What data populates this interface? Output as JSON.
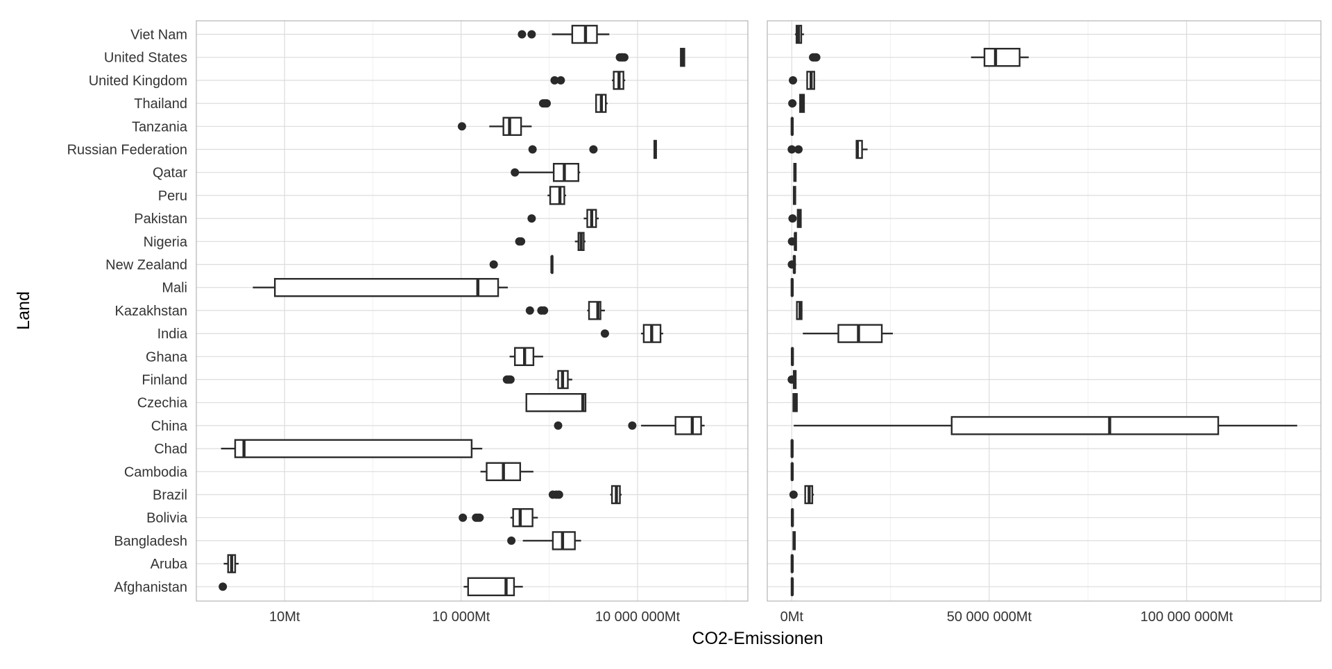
{
  "chart_data": {
    "type": "boxplot",
    "orientation": "horizontal",
    "ylabel": "Land",
    "xlabel": "CO2-Emissionen",
    "grid": true,
    "categories": [
      "Afghanistan",
      "Aruba",
      "Bangladesh",
      "Bolivia",
      "Brazil",
      "Cambodia",
      "Chad",
      "China",
      "Czechia",
      "Finland",
      "Ghana",
      "India",
      "Kazakhstan",
      "Mali",
      "New Zealand",
      "Nigeria",
      "Pakistan",
      "Peru",
      "Qatar",
      "Russian Federation",
      "Tanzania",
      "Thailand",
      "United Kingdom",
      "United States",
      "Viet Nam"
    ],
    "panels": [
      {
        "scale": "log10",
        "xlim": [
          3.0,
          9.25
        ],
        "x_ticks": [
          {
            "value": 4,
            "label": "10Mt"
          },
          {
            "value": 6,
            "label": "10 000Mt"
          },
          {
            "value": 8,
            "label": "10 000 000Mt"
          }
        ],
        "x_minor": [
          5,
          7,
          9
        ],
        "boxes": [
          {
            "category": "Afghanistan",
            "whisker_low": 6.03,
            "q1": 6.08,
            "median": 6.51,
            "q3": 6.6,
            "whisker_high": 6.7,
            "outliers": [
              3.3
            ]
          },
          {
            "category": "Aruba",
            "whisker_low": 3.31,
            "q1": 3.36,
            "median": 3.4,
            "q3": 3.44,
            "whisker_high": 3.48,
            "outliers": []
          },
          {
            "category": "Bangladesh",
            "whisker_low": 6.7,
            "q1": 7.04,
            "median": 7.15,
            "q3": 7.29,
            "whisker_high": 7.36,
            "outliers": [
              6.57
            ]
          },
          {
            "category": "Bolivia",
            "whisker_low": 6.56,
            "q1": 6.59,
            "median": 6.67,
            "q3": 6.81,
            "whisker_high": 6.87,
            "outliers": [
              6.02,
              6.17,
              6.19,
              6.21
            ]
          },
          {
            "category": "Brazil",
            "whisker_low": 7.69,
            "q1": 7.71,
            "median": 7.76,
            "q3": 7.8,
            "whisker_high": 7.82,
            "outliers": [
              7.04,
              7.08,
              7.11
            ]
          },
          {
            "category": "Cambodia",
            "whisker_low": 6.22,
            "q1": 6.29,
            "median": 6.48,
            "q3": 6.67,
            "whisker_high": 6.82,
            "outliers": []
          },
          {
            "category": "Chad",
            "whisker_low": 3.28,
            "q1": 3.44,
            "median": 3.54,
            "q3": 6.12,
            "whisker_high": 6.24,
            "outliers": []
          },
          {
            "category": "China",
            "whisker_low": 8.04,
            "q1": 8.43,
            "median": 8.62,
            "q3": 8.72,
            "whisker_high": 8.76,
            "outliers": [
              7.1,
              7.94
            ]
          },
          {
            "category": "Czechia",
            "whisker_low": 6.74,
            "q1": 6.74,
            "median": 7.38,
            "q3": 7.41,
            "whisker_high": 7.41,
            "outliers": []
          },
          {
            "category": "Finland",
            "whisker_low": 7.07,
            "q1": 7.1,
            "median": 7.15,
            "q3": 7.21,
            "whisker_high": 7.26,
            "outliers": [
              6.52,
              6.54,
              6.56
            ]
          },
          {
            "category": "Ghana",
            "whisker_low": 6.55,
            "q1": 6.61,
            "median": 6.72,
            "q3": 6.82,
            "whisker_high": 6.93,
            "outliers": []
          },
          {
            "category": "India",
            "whisker_low": 8.04,
            "q1": 8.07,
            "median": 8.16,
            "q3": 8.26,
            "whisker_high": 8.29,
            "outliers": [
              7.63
            ]
          },
          {
            "category": "Kazakhstan",
            "whisker_low": 7.43,
            "q1": 7.45,
            "median": 7.55,
            "q3": 7.58,
            "whisker_high": 7.63,
            "outliers": [
              6.78,
              6.91,
              6.94
            ]
          },
          {
            "category": "Mali",
            "whisker_low": 3.64,
            "q1": 3.89,
            "median": 6.19,
            "q3": 6.42,
            "whisker_high": 6.53,
            "outliers": []
          },
          {
            "category": "New Zealand",
            "whisker_low": 7.03,
            "q1": 7.03,
            "median": 7.03,
            "q3": 7.03,
            "whisker_high": 7.03,
            "outliers": [
              6.37
            ]
          },
          {
            "category": "Nigeria",
            "whisker_low": 7.29,
            "q1": 7.33,
            "median": 7.36,
            "q3": 7.39,
            "whisker_high": 7.41,
            "outliers": [
              6.66,
              6.68
            ]
          },
          {
            "category": "Pakistan",
            "whisker_low": 7.39,
            "q1": 7.43,
            "median": 7.48,
            "q3": 7.53,
            "whisker_high": 7.56,
            "outliers": [
              6.8
            ]
          },
          {
            "category": "Peru",
            "whisker_low": 6.98,
            "q1": 7.01,
            "median": 7.12,
            "q3": 7.17,
            "whisker_high": 7.19,
            "outliers": []
          },
          {
            "category": "Qatar",
            "whisker_low": 6.62,
            "q1": 7.05,
            "median": 7.17,
            "q3": 7.33,
            "whisker_high": 7.35,
            "outliers": [
              6.61
            ]
          },
          {
            "category": "Russian Federation",
            "whisker_low": 8.19,
            "q1": 8.19,
            "median": 8.2,
            "q3": 8.21,
            "whisker_high": 8.21,
            "outliers": [
              6.81,
              7.5
            ]
          },
          {
            "category": "Tanzania",
            "whisker_low": 6.32,
            "q1": 6.48,
            "median": 6.55,
            "q3": 6.68,
            "whisker_high": 6.8,
            "outliers": [
              6.01
            ]
          },
          {
            "category": "Thailand",
            "whisker_low": 7.53,
            "q1": 7.53,
            "median": 7.59,
            "q3": 7.64,
            "whisker_high": 7.66,
            "outliers": [
              6.93,
              6.95,
              6.97
            ]
          },
          {
            "category": "United Kingdom",
            "whisker_low": 7.71,
            "q1": 7.73,
            "median": 7.79,
            "q3": 7.84,
            "whisker_high": 7.86,
            "outliers": [
              7.06,
              7.13
            ]
          },
          {
            "category": "United States",
            "whisker_low": 8.49,
            "q1": 8.49,
            "median": 8.51,
            "q3": 8.53,
            "whisker_high": 8.53,
            "outliers": [
              7.8,
              7.82,
              7.83,
              7.85
            ]
          },
          {
            "category": "Viet Nam",
            "whisker_low": 7.03,
            "q1": 7.26,
            "median": 7.41,
            "q3": 7.54,
            "whisker_high": 7.68,
            "outliers": [
              6.69,
              6.8
            ]
          }
        ]
      },
      {
        "scale": "linear",
        "xlim": [
          -6200000,
          134000000
        ],
        "x_ticks": [
          {
            "value": 0,
            "label": "0Mt"
          },
          {
            "value": 50000000,
            "label": "50 000 000Mt"
          },
          {
            "value": 100000000,
            "label": "100 000 000Mt"
          }
        ],
        "x_minor": [
          25000000,
          75000000,
          125000000
        ],
        "boxes": [
          {
            "category": "Afghanistan",
            "whisker_low": 0,
            "q1": 20000,
            "median": 120000,
            "q3": 150000,
            "whisker_high": 180000,
            "outliers": []
          },
          {
            "category": "Aruba",
            "whisker_low": 0,
            "q1": 30000,
            "median": 100000,
            "q3": 140000,
            "whisker_high": 170000,
            "outliers": []
          },
          {
            "category": "Bangladesh",
            "whisker_low": 300000,
            "q1": 400000,
            "median": 600000,
            "q3": 800000,
            "whisker_high": 900000,
            "outliers": []
          },
          {
            "category": "Bolivia",
            "whisker_low": 50000,
            "q1": 100000,
            "median": 150000,
            "q3": 200000,
            "whisker_high": 250000,
            "outliers": []
          },
          {
            "category": "Brazil",
            "whisker_low": 3400000,
            "q1": 3400000,
            "median": 4400000,
            "q3": 5200000,
            "whisker_high": 5600000,
            "outliers": [
              450000
            ]
          },
          {
            "category": "Cambodia",
            "whisker_low": 0,
            "q1": 50000,
            "median": 100000,
            "q3": 150000,
            "whisker_high": 200000,
            "outliers": []
          },
          {
            "category": "Chad",
            "whisker_low": 0,
            "q1": 20000,
            "median": 80000,
            "q3": 120000,
            "whisker_high": 150000,
            "outliers": []
          },
          {
            "category": "China",
            "whisker_low": 500000,
            "q1": 40500000,
            "median": 80500000,
            "q3": 108000000,
            "whisker_high": 128000000,
            "outliers": []
          },
          {
            "category": "Czechia",
            "whisker_low": 300000,
            "q1": 400000,
            "median": 800000,
            "q3": 1300000,
            "whisker_high": 1400000,
            "outliers": []
          },
          {
            "category": "Finland",
            "whisker_low": 400000,
            "q1": 500000,
            "median": 800000,
            "q3": 1000000,
            "whisker_high": 1100000,
            "outliers": [
              0,
              50000
            ]
          },
          {
            "category": "Ghana",
            "whisker_low": 0,
            "q1": 80000,
            "median": 150000,
            "q3": 220000,
            "whisker_high": 280000,
            "outliers": []
          },
          {
            "category": "India",
            "whisker_low": 2800000,
            "q1": 11800000,
            "median": 16900000,
            "q3": 22800000,
            "whisker_high": 25600000,
            "outliers": []
          },
          {
            "category": "Kazakhstan",
            "whisker_low": 1200000,
            "q1": 1300000,
            "median": 2100000,
            "q3": 2500000,
            "whisker_high": 2700000,
            "outliers": []
          },
          {
            "category": "Mali",
            "whisker_low": 0,
            "q1": 20000,
            "median": 100000,
            "q3": 150000,
            "whisker_high": 200000,
            "outliers": []
          },
          {
            "category": "New Zealand",
            "whisker_low": 500000,
            "q1": 550000,
            "median": 650000,
            "q3": 750000,
            "whisker_high": 800000,
            "outliers": [
              30000
            ]
          },
          {
            "category": "Nigeria",
            "whisker_low": 700000,
            "q1": 800000,
            "median": 900000,
            "q3": 1100000,
            "whisker_high": 1200000,
            "outliers": [
              60000
            ]
          },
          {
            "category": "Pakistan",
            "whisker_low": 1400000,
            "q1": 1500000,
            "median": 1900000,
            "q3": 2300000,
            "whisker_high": 2400000,
            "outliers": [
              200000
            ]
          },
          {
            "category": "Peru",
            "whisker_low": 400000,
            "q1": 500000,
            "median": 700000,
            "q3": 900000,
            "whisker_high": 1000000,
            "outliers": []
          },
          {
            "category": "Qatar",
            "whisker_low": 500000,
            "q1": 600000,
            "median": 800000,
            "q3": 1000000,
            "whisker_high": 1100000,
            "outliers": []
          },
          {
            "category": "Russian Federation",
            "whisker_low": 16400000,
            "q1": 16400000,
            "median": 16600000,
            "q3": 17800000,
            "whisker_high": 19200000,
            "outliers": [
              0,
              1700000
            ]
          },
          {
            "category": "Tanzania",
            "whisker_low": 0,
            "q1": 50000,
            "median": 100000,
            "q3": 150000,
            "whisker_high": 200000,
            "outliers": []
          },
          {
            "category": "Thailand",
            "whisker_low": 2000000,
            "q1": 2100000,
            "median": 2600000,
            "q3": 3100000,
            "whisker_high": 3200000,
            "outliers": [
              150000
            ]
          },
          {
            "category": "United Kingdom",
            "whisker_low": 3700000,
            "q1": 3900000,
            "median": 4900000,
            "q3": 5700000,
            "whisker_high": 5900000,
            "outliers": [
              300000
            ]
          },
          {
            "category": "United States",
            "whisker_low": 45400000,
            "q1": 48800000,
            "median": 51600000,
            "q3": 57700000,
            "whisker_high": 60000000,
            "outliers": [
              5400000,
              5800000,
              6200000
            ]
          },
          {
            "category": "Viet Nam",
            "whisker_low": 800000,
            "q1": 1200000,
            "median": 1700000,
            "q3": 2400000,
            "whisker_high": 3100000,
            "outliers": []
          }
        ]
      }
    ]
  }
}
